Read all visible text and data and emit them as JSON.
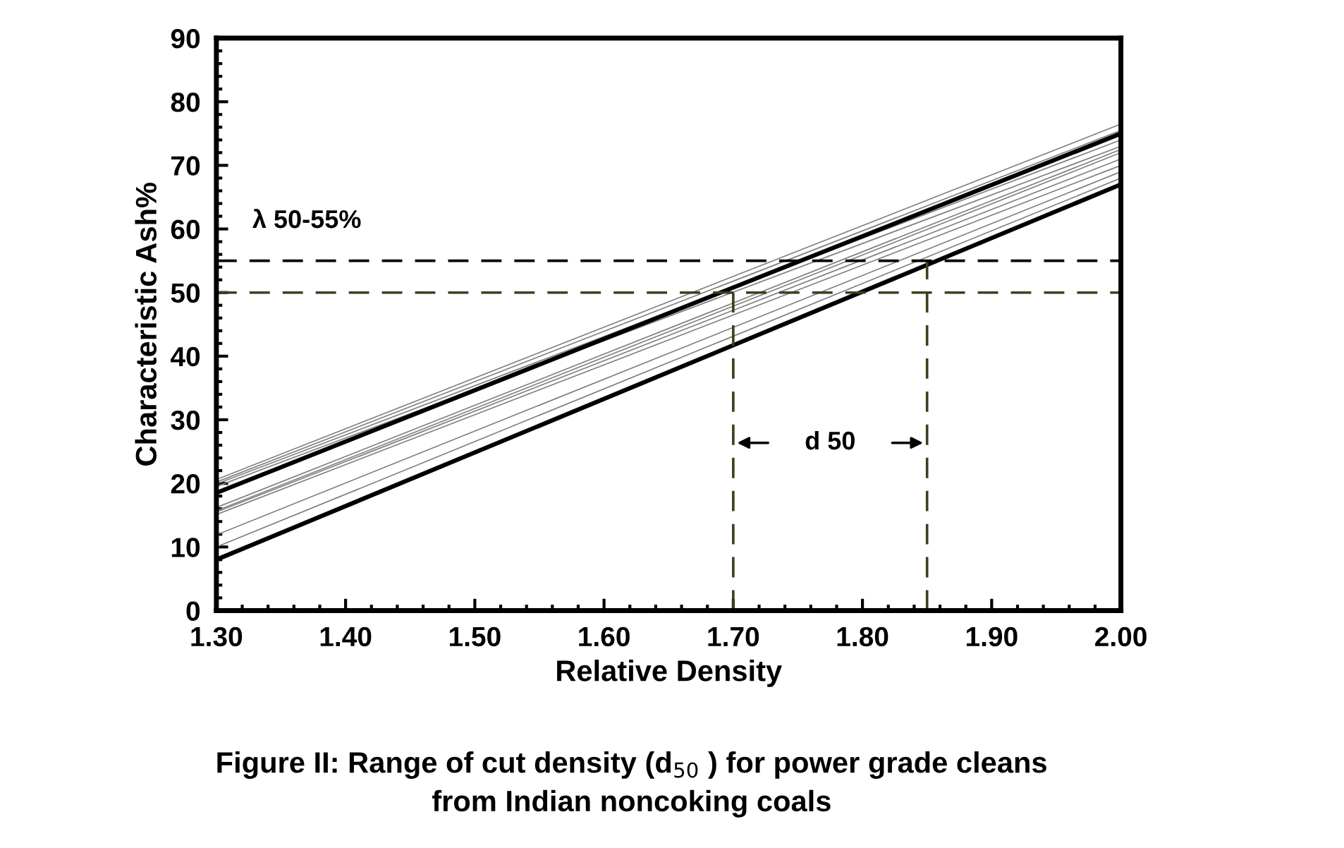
{
  "chart_data": {
    "type": "line",
    "xlabel": "Relative Density",
    "ylabel": "Characteristic Ash%",
    "xlim": [
      1.3,
      2.0
    ],
    "xticks": [
      {
        "value": 1.3,
        "label": "1.30"
      },
      {
        "value": 1.4,
        "label": "1.40"
      },
      {
        "value": 1.5,
        "label": "1.50"
      },
      {
        "value": 1.6,
        "label": "1.60"
      },
      {
        "value": 1.7,
        "label": "1.70"
      },
      {
        "value": 1.8,
        "label": "1.80"
      },
      {
        "value": 1.9,
        "label": "1.90"
      },
      {
        "value": 2.0,
        "label": "2.00"
      }
    ],
    "ylim": [
      0,
      90
    ],
    "yticks": [
      0,
      10,
      20,
      30,
      40,
      50,
      60,
      70,
      80,
      90
    ],
    "grid": false,
    "legend": false,
    "marker": "none",
    "series": [
      {
        "color": "#808080",
        "x": [
          1.3,
          2.0
        ],
        "values": [
          20.6,
          76.5
        ]
      },
      {
        "color": "#808080",
        "x": [
          1.3,
          2.0
        ],
        "values": [
          20.2,
          75.5
        ]
      },
      {
        "color": "#808080",
        "x": [
          1.3,
          2.0
        ],
        "values": [
          19.9,
          74.0
        ]
      },
      {
        "color": "#808080",
        "x": [
          1.3,
          2.0
        ],
        "values": [
          19.5,
          73.0
        ]
      },
      {
        "color": "#808080",
        "x": [
          1.3,
          2.0
        ],
        "values": [
          16.2,
          72.5
        ]
      },
      {
        "color": "#808080",
        "x": [
          1.3,
          2.0
        ],
        "values": [
          15.7,
          72.0
        ]
      },
      {
        "color": "#808080",
        "x": [
          1.3,
          2.0
        ],
        "values": [
          15.5,
          71.0
        ]
      },
      {
        "color": "#808080",
        "x": [
          1.3,
          2.0
        ],
        "values": [
          15.1,
          70.0
        ]
      },
      {
        "color": "#808080",
        "x": [
          1.3,
          2.0
        ],
        "values": [
          11.9,
          69.0
        ]
      },
      {
        "color": "#808080",
        "x": [
          1.3,
          2.0
        ],
        "values": [
          10.0,
          68.0
        ]
      },
      {
        "color": "#000000",
        "x": [
          1.3,
          2.0
        ],
        "values": [
          18.5,
          75.0
        ]
      },
      {
        "color": "#000000",
        "x": [
          1.3,
          2.0
        ],
        "values": [
          8.0,
          67.0
        ]
      },
      {
        "color": "#3f3f1f",
        "x": [
          1.7,
          1.7
        ],
        "values": [
          0,
          50
        ],
        "line_style": "dashed"
      },
      {
        "color": "#3f3f1f",
        "x": [
          1.85,
          1.85
        ],
        "values": [
          0,
          55
        ],
        "line_style": "dashed"
      }
    ],
    "ref_lines": [
      {
        "axis": "y",
        "value": 55,
        "color": "#000000",
        "line_style": "dashed"
      },
      {
        "axis": "y",
        "value": 50,
        "color": "#3f3f1f",
        "line_style": "dashed"
      }
    ],
    "annotations": [
      "λ 50-55%",
      "d 50",
      "Figure II: Range of cut density (d$_{50}$ ) for power grade cleans\nfrom Indian noncoking coals"
    ]
  }
}
